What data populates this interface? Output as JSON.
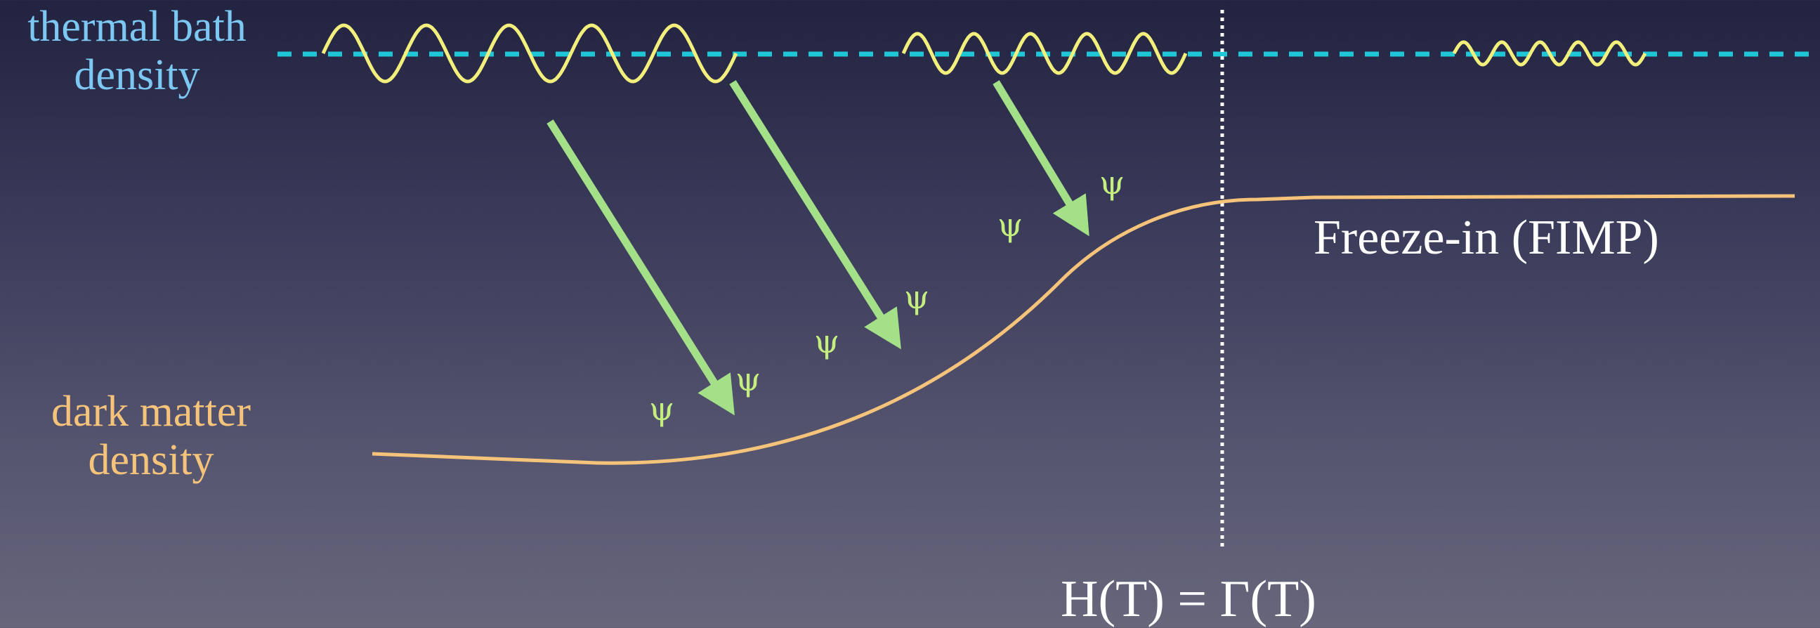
{
  "labels": {
    "thermal_bath": [
      "thermal bath",
      "density"
    ],
    "dark_matter": [
      "dark matter",
      "density"
    ],
    "freeze_in": "Freeze-in (FIMP)",
    "equality": "H(T) = Γ(T)"
  },
  "particle_symbol": "ψ",
  "colors": {
    "thermal_bath_line": "#1fc6d6",
    "thermal_label": "#7cc8f2",
    "dark_matter_curve": "#f5c47a",
    "wave": "#f2ef7c",
    "arrow": "#a3e088",
    "psi": "#c4ef7f",
    "divider": "#ffffff",
    "text": "#ffffff"
  }
}
